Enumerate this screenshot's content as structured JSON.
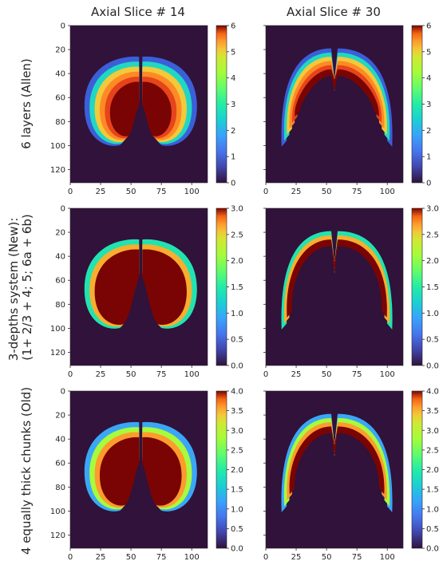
{
  "figure": {
    "columns": [
      "Axial Slice # 14",
      "Axial Slice # 30"
    ],
    "rows": [
      {
        "label_lines": [
          "6 layers (Allen)"
        ]
      },
      {
        "label_lines": [
          "3-depths system (New):",
          "(1+ 2/3 + 4; 5; 6a + 6b)"
        ]
      },
      {
        "label_lines": [
          "4 equally thick chunks (Old)"
        ]
      }
    ]
  },
  "chart_data": [
    {
      "type": "heatmap",
      "panel": "6 layers (Allen), Axial Slice # 14",
      "slice": 14,
      "x_ticks": [
        0,
        25,
        50,
        75,
        100
      ],
      "y_ticks": [
        0,
        20,
        40,
        60,
        80,
        100,
        120
      ],
      "xlim": [
        0,
        113
      ],
      "ylim": [
        131,
        0
      ],
      "colorbar": {
        "range": [
          0,
          6
        ],
        "ticks": [
          "0",
          "1",
          "2",
          "3",
          "4",
          "5",
          "6"
        ]
      },
      "colormap": "turbo",
      "background_color": "#30123b"
    },
    {
      "type": "heatmap",
      "panel": "6 layers (Allen), Axial Slice # 30",
      "slice": 30,
      "x_ticks": [
        0,
        25,
        50,
        75,
        100
      ],
      "y_ticks": [
        0,
        20,
        40,
        60,
        80,
        100,
        120
      ],
      "xlim": [
        0,
        113
      ],
      "ylim": [
        131,
        0
      ],
      "colorbar": {
        "range": [
          0,
          6
        ],
        "ticks": [
          "0",
          "1",
          "2",
          "3",
          "4",
          "5",
          "6"
        ]
      },
      "colormap": "turbo",
      "background_color": "#30123b"
    },
    {
      "type": "heatmap",
      "panel": "3-depths system (New), Axial Slice # 14",
      "slice": 14,
      "x_ticks": [
        0,
        25,
        50,
        75,
        100
      ],
      "y_ticks": [
        0,
        20,
        40,
        60,
        80,
        100,
        120
      ],
      "xlim": [
        0,
        113
      ],
      "ylim": [
        131,
        0
      ],
      "colorbar": {
        "range": [
          0,
          3
        ],
        "ticks": [
          "0.0",
          "0.5",
          "1.0",
          "1.5",
          "2.0",
          "2.5",
          "3.0"
        ]
      },
      "colormap": "turbo",
      "background_color": "#30123b"
    },
    {
      "type": "heatmap",
      "panel": "3-depths system (New), Axial Slice # 30",
      "slice": 30,
      "x_ticks": [
        0,
        25,
        50,
        75,
        100
      ],
      "y_ticks": [
        0,
        20,
        40,
        60,
        80,
        100,
        120
      ],
      "xlim": [
        0,
        113
      ],
      "ylim": [
        131,
        0
      ],
      "colorbar": {
        "range": [
          0,
          3
        ],
        "ticks": [
          "0.0",
          "0.5",
          "1.0",
          "1.5",
          "2.0",
          "2.5",
          "3.0"
        ]
      },
      "colormap": "turbo",
      "background_color": "#30123b"
    },
    {
      "type": "heatmap",
      "panel": "4 equally thick chunks (Old), Axial Slice # 14",
      "slice": 14,
      "x_ticks": [
        0,
        25,
        50,
        75,
        100
      ],
      "y_ticks": [
        0,
        20,
        40,
        60,
        80,
        100,
        120
      ],
      "xlim": [
        0,
        113
      ],
      "ylim": [
        131,
        0
      ],
      "colorbar": {
        "range": [
          0,
          4
        ],
        "ticks": [
          "0.0",
          "0.5",
          "1.0",
          "1.5",
          "2.0",
          "2.5",
          "3.0",
          "3.5",
          "4.0"
        ]
      },
      "colormap": "turbo",
      "background_color": "#30123b"
    },
    {
      "type": "heatmap",
      "panel": "4 equally thick chunks (Old), Axial Slice # 30",
      "slice": 30,
      "x_ticks": [
        0,
        25,
        50,
        75,
        100
      ],
      "y_ticks": [
        0,
        20,
        40,
        60,
        80,
        100,
        120
      ],
      "xlim": [
        0,
        113
      ],
      "ylim": [
        131,
        0
      ],
      "colorbar": {
        "range": [
          0,
          4
        ],
        "ticks": [
          "0.0",
          "0.5",
          "1.0",
          "1.5",
          "2.0",
          "2.5",
          "3.0",
          "3.5",
          "4.0"
        ]
      },
      "colormap": "turbo",
      "background_color": "#30123b"
    }
  ]
}
